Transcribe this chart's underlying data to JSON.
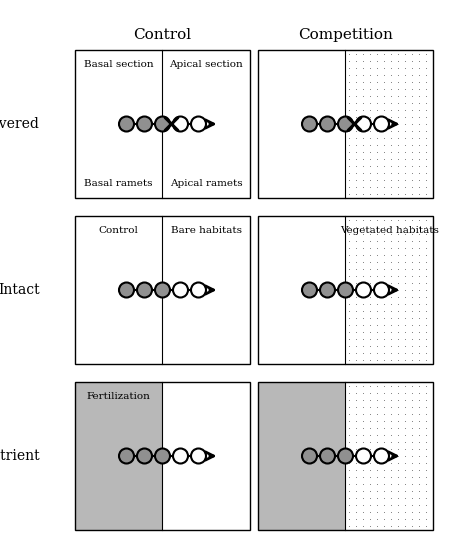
{
  "title_control": "Control",
  "title_competition": "Competition",
  "row_labels": [
    "Severed",
    "Intact",
    "Nutrient"
  ],
  "background_color": "#ffffff",
  "gray_circle_color": "#909090",
  "white_circle_color": "#ffffff",
  "circle_edge_color": "#000000",
  "box_line_color": "#000000",
  "gray_bg_color": "#b8b8b8",
  "figsize": [
    4.74,
    5.46
  ],
  "dpi": 100
}
